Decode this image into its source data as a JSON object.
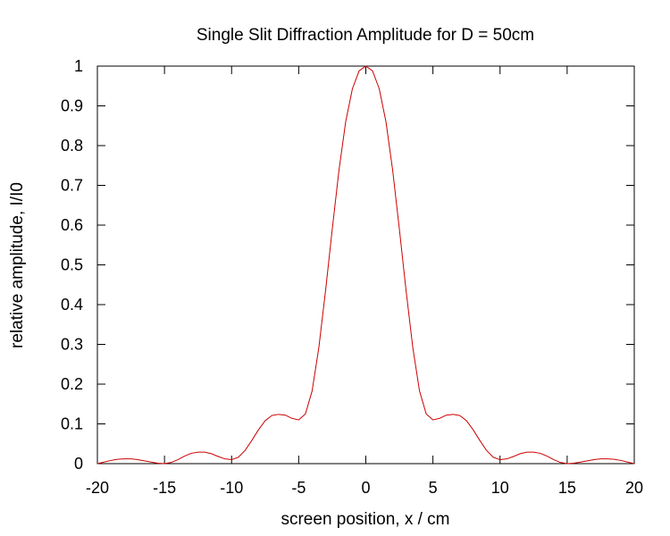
{
  "chart_data": {
    "type": "line",
    "title": "Single Slit Diffraction Amplitude for D = 50cm",
    "xlabel": "screen position, x / cm",
    "ylabel": "relative amplitude, I/I0",
    "xlim": [
      -20,
      20
    ],
    "ylim": [
      0,
      1
    ],
    "x_ticks": [
      "-20",
      "-15",
      "-10",
      "-5",
      "0",
      "5",
      "10",
      "15",
      "20"
    ],
    "y_ticks": [
      "0",
      "0.1",
      "0.2",
      "0.3",
      "0.4",
      "0.5",
      "0.6",
      "0.7",
      "0.8",
      "0.9",
      "1"
    ],
    "grid": false,
    "legend": "none",
    "line_color": "#cc0000",
    "series": [
      {
        "x": [
          -20,
          -19.5,
          -19,
          -18.5,
          -18,
          -17.5,
          -17,
          -16.5,
          -16,
          -15.5,
          -15,
          -14.5,
          -14,
          -13.5,
          -13,
          -12.5,
          -12,
          -11.5,
          -11,
          -10.5,
          -10,
          -9.5,
          -9,
          -8.5,
          -8,
          -7.5,
          -7,
          -6.5,
          -6,
          -5.5,
          -5,
          -4.5,
          -4,
          -3.5,
          -3,
          -2.5,
          -2,
          -1.5,
          -1,
          -0.5,
          0,
          0.5,
          1,
          1.5,
          2,
          2.5,
          3,
          3.5,
          4,
          4.5,
          5,
          5.5,
          6,
          6.5,
          7,
          7.5,
          8,
          8.5,
          9,
          9.5,
          10,
          10.5,
          11,
          11.5,
          12,
          12.5,
          13,
          13.5,
          14,
          14.5,
          15,
          15.5,
          16,
          16.5,
          17,
          17.5,
          18,
          18.5,
          19,
          19.5,
          20
        ],
        "y": [
          0.0,
          0.004,
          0.008,
          0.011,
          0.012,
          0.012,
          0.01,
          0.007,
          0.004,
          0.001,
          0.0,
          0.003,
          0.01,
          0.019,
          0.026,
          0.029,
          0.029,
          0.025,
          0.018,
          0.012,
          0.01,
          0.016,
          0.033,
          0.058,
          0.085,
          0.108,
          0.121,
          0.124,
          0.122,
          0.114,
          0.11,
          0.125,
          0.183,
          0.292,
          0.435,
          0.59,
          0.738,
          0.86,
          0.943,
          0.988,
          1.0,
          0.988,
          0.943,
          0.86,
          0.738,
          0.59,
          0.435,
          0.292,
          0.183,
          0.125,
          0.11,
          0.114,
          0.122,
          0.124,
          0.121,
          0.108,
          0.085,
          0.058,
          0.033,
          0.016,
          0.01,
          0.012,
          0.018,
          0.025,
          0.029,
          0.029,
          0.026,
          0.019,
          0.01,
          0.003,
          0.0,
          0.001,
          0.004,
          0.007,
          0.01,
          0.012,
          0.012,
          0.011,
          0.008,
          0.004,
          0.0
        ]
      }
    ]
  }
}
